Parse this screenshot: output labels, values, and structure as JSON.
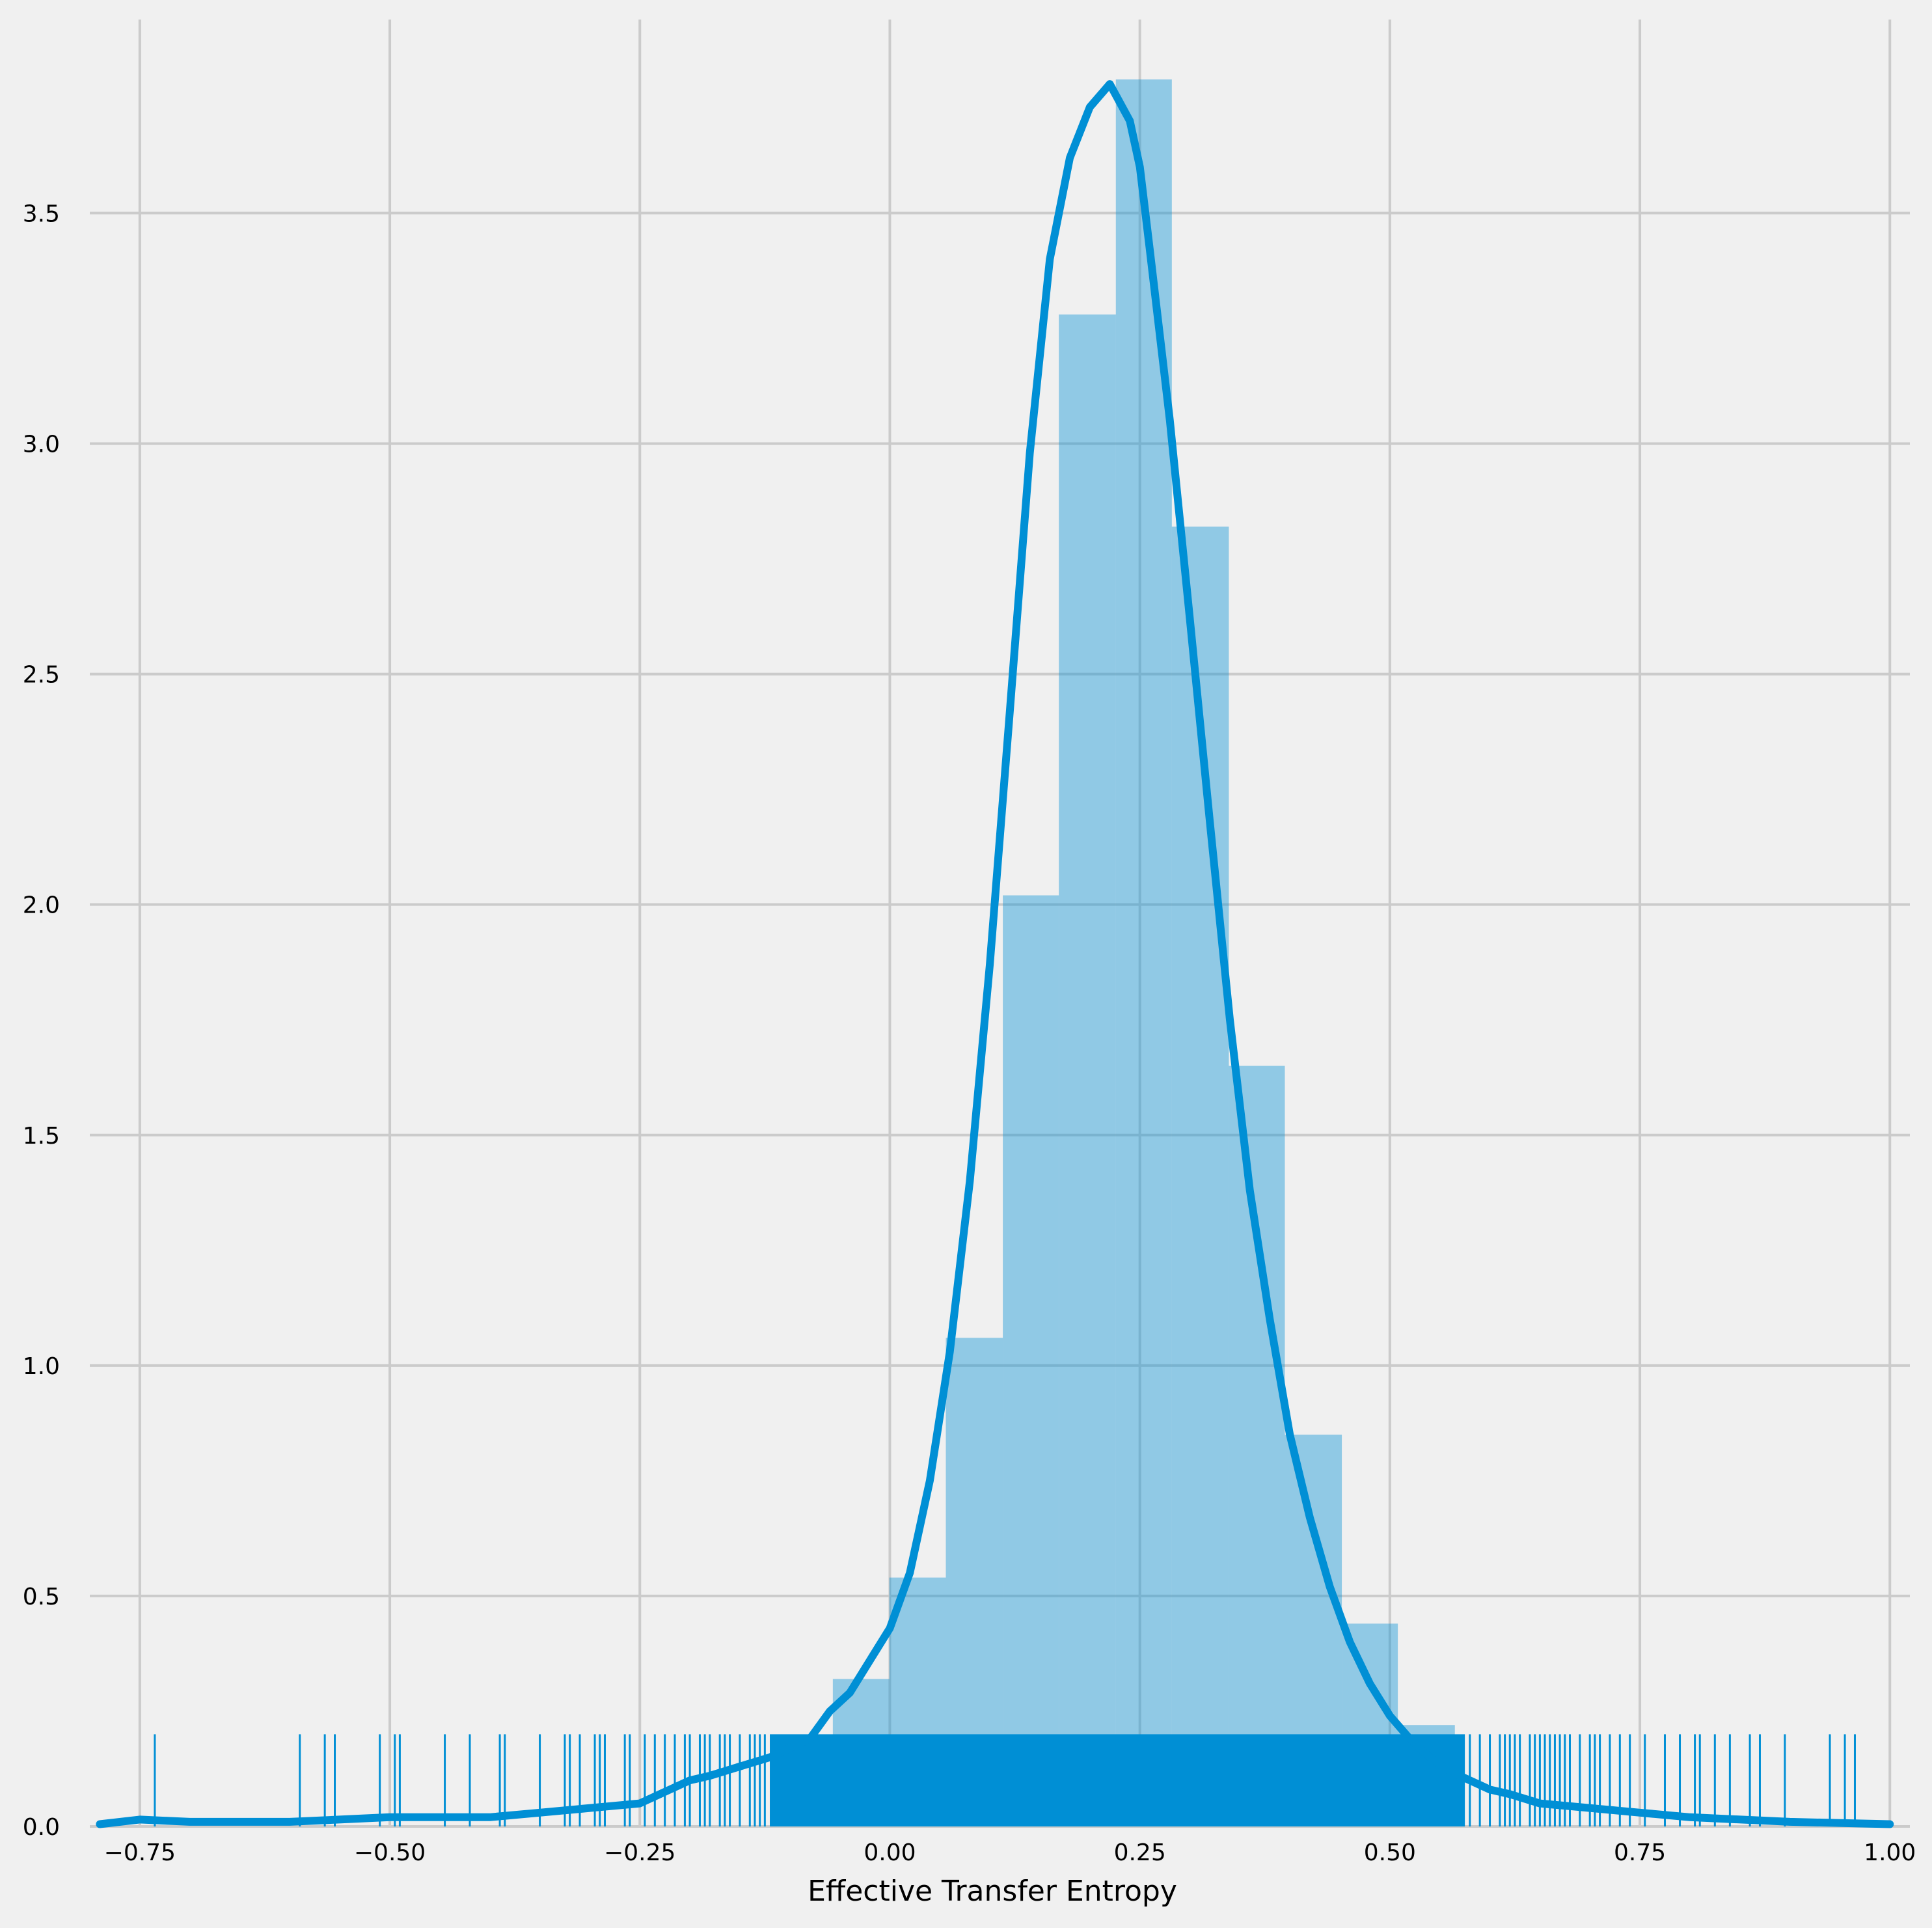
{
  "chart_data": {
    "type": "histogram",
    "title": "",
    "xlabel": "Effective Transfer Entropy",
    "ylabel": "",
    "xlim": [
      -0.8,
      1.02
    ],
    "ylim": [
      0,
      3.92
    ],
    "xticks": [
      -0.75,
      -0.5,
      -0.25,
      0.0,
      0.25,
      0.5,
      0.75,
      1.0
    ],
    "xtick_labels": [
      "−0.75",
      "−0.50",
      "−0.25",
      "0.00",
      "0.25",
      "0.50",
      "0.75",
      "1.00"
    ],
    "yticks": [
      0.0,
      0.5,
      1.0,
      1.5,
      2.0,
      2.5,
      3.0,
      3.5
    ],
    "ytick_labels": [
      "0.0",
      "0.5",
      "1.0",
      "1.5",
      "2.0",
      "2.5",
      "3.0",
      "3.5"
    ],
    "grid": true,
    "legend": "none",
    "colors": {
      "background": "#f0f0f0",
      "grid": "#cbcbcb",
      "bar": "#008fd5",
      "bar_opacity": 0.4,
      "kde": "#008fd5",
      "rug": "#008fd5"
    },
    "histogram": {
      "bins": [
        {
          "x0": -0.057,
          "x1": -0.0005,
          "value": 0.32
        },
        {
          "x0": -0.0005,
          "x1": 0.056,
          "value": 0.54
        },
        {
          "x0": 0.056,
          "x1": 0.113,
          "value": 1.06
        },
        {
          "x0": 0.113,
          "x1": 0.169,
          "value": 2.02
        },
        {
          "x0": 0.169,
          "x1": 0.226,
          "value": 3.28
        },
        {
          "x0": 0.226,
          "x1": 0.282,
          "value": 3.79
        },
        {
          "x0": 0.282,
          "x1": 0.339,
          "value": 2.82
        },
        {
          "x0": 0.339,
          "x1": 0.395,
          "value": 1.65
        },
        {
          "x0": 0.395,
          "x1": 0.452,
          "value": 0.85
        },
        {
          "x0": 0.452,
          "x1": 0.508,
          "value": 0.44
        },
        {
          "x0": 0.508,
          "x1": 0.565,
          "value": 0.22
        }
      ]
    },
    "kde": {
      "x": [
        -0.79,
        -0.75,
        -0.7,
        -0.6,
        -0.5,
        -0.4,
        -0.35,
        -0.3,
        -0.25,
        -0.22,
        -0.2,
        -0.18,
        -0.15,
        -0.12,
        -0.1,
        -0.08,
        -0.06,
        -0.04,
        -0.02,
        0.0,
        0.02,
        0.04,
        0.06,
        0.08,
        0.1,
        0.12,
        0.14,
        0.16,
        0.18,
        0.2,
        0.22,
        0.24,
        0.25,
        0.26,
        0.28,
        0.3,
        0.32,
        0.34,
        0.36,
        0.38,
        0.4,
        0.42,
        0.44,
        0.46,
        0.48,
        0.5,
        0.52,
        0.54,
        0.56,
        0.58,
        0.6,
        0.62,
        0.65,
        0.7,
        0.75,
        0.8,
        0.9,
        1.0
      ],
      "y": [
        0.005,
        0.015,
        0.01,
        0.01,
        0.02,
        0.02,
        0.03,
        0.04,
        0.05,
        0.08,
        0.1,
        0.11,
        0.13,
        0.15,
        0.17,
        0.19,
        0.25,
        0.29,
        0.36,
        0.43,
        0.55,
        0.75,
        1.03,
        1.4,
        1.87,
        2.42,
        2.98,
        3.4,
        3.62,
        3.73,
        3.78,
        3.7,
        3.6,
        3.42,
        3.05,
        2.62,
        2.18,
        1.75,
        1.38,
        1.1,
        0.85,
        0.67,
        0.52,
        0.4,
        0.31,
        0.24,
        0.19,
        0.15,
        0.12,
        0.1,
        0.08,
        0.07,
        0.05,
        0.04,
        0.03,
        0.02,
        0.01,
        0.005
      ],
      "line_width": 12
    },
    "rug": {
      "height": 0.2,
      "sparse_x": [
        -0.735,
        -0.59,
        -0.565,
        -0.555,
        -0.51,
        -0.495,
        -0.49,
        -0.445,
        -0.42,
        -0.39,
        -0.385,
        -0.35,
        -0.325,
        -0.32,
        -0.31,
        -0.295,
        -0.29,
        -0.285,
        -0.265,
        -0.26,
        -0.245,
        -0.235,
        -0.225,
        -0.215,
        -0.205,
        -0.2,
        -0.19,
        -0.185,
        -0.18,
        -0.17,
        -0.165,
        -0.16,
        -0.15,
        -0.14,
        -0.135,
        -0.13,
        -0.125,
        0.58,
        0.59,
        0.6,
        0.61,
        0.615,
        0.62,
        0.625,
        0.63,
        0.64,
        0.645,
        0.65,
        0.655,
        0.66,
        0.665,
        0.67,
        0.675,
        0.68,
        0.69,
        0.7,
        0.705,
        0.71,
        0.72,
        0.73,
        0.74,
        0.755,
        0.775,
        0.79,
        0.805,
        0.81,
        0.825,
        0.84,
        0.86,
        0.87,
        0.895,
        0.94,
        0.955,
        0.965
      ],
      "dense_range": [
        -0.12,
        0.575
      ]
    }
  }
}
